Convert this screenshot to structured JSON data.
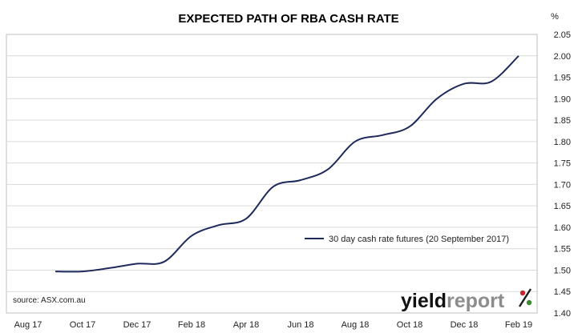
{
  "chart_data": {
    "type": "line",
    "title": "EXPECTED PATH OF RBA CASH RATE",
    "ylabel": "%",
    "ylim": [
      1.4,
      2.05
    ],
    "y_ticks": [
      "2.05",
      "2.00",
      "1.95",
      "1.90",
      "1.85",
      "1.80",
      "1.75",
      "1.70",
      "1.65",
      "1.60",
      "1.55",
      "1.50",
      "1.45",
      "1.40"
    ],
    "x_ticks": [
      "Aug 17",
      "Oct 17",
      "Dec 17",
      "Feb 18",
      "Apr 18",
      "Jun 18",
      "Aug 18",
      "Oct 18",
      "Dec 18",
      "Feb 19"
    ],
    "grid": true,
    "legend_position": "right",
    "series": [
      {
        "name": "30 day cash rate futures (20 September 2017)",
        "color": "#1f2a5c",
        "x": [
          "Sep 17",
          "Oct 17",
          "Nov 17",
          "Dec 17",
          "Jan 18",
          "Feb 18",
          "Mar 18",
          "Apr 18",
          "May 18",
          "Jun 18",
          "Jul 18",
          "Aug 18",
          "Sep 18",
          "Oct 18",
          "Nov 18",
          "Dec 18",
          "Jan 19",
          "Feb 19"
        ],
        "values": [
          1.497,
          1.497,
          1.505,
          1.515,
          1.52,
          1.58,
          1.605,
          1.62,
          1.695,
          1.71,
          1.735,
          1.8,
          1.815,
          1.835,
          1.9,
          1.935,
          1.94,
          2.0
        ]
      }
    ]
  },
  "source_label": "source: ASX.com.au",
  "logo": {
    "part1": "yield",
    "part2": "report",
    "part3": "%"
  }
}
